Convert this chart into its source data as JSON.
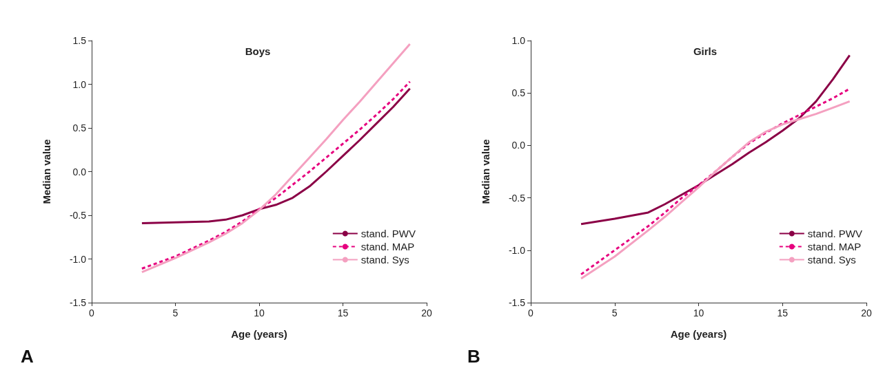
{
  "chart_data": [
    {
      "type": "line",
      "title": "Boys",
      "xlabel": "Age (years)",
      "ylabel": "Median value",
      "annotations": [
        "A"
      ],
      "xlim": [
        0,
        20
      ],
      "xticks": [
        0,
        5,
        10,
        15,
        20
      ],
      "ylim": [
        -1.5,
        1.5
      ],
      "yticks": [
        {
          "value": -1.5,
          "label": "-1.5"
        },
        {
          "value": -1,
          "label": "-1.0"
        },
        {
          "value": -0.5,
          "label": "-0.5"
        },
        {
          "value": 0,
          "label": "0.0"
        },
        {
          "value": 0.5,
          "label": "0.5"
        },
        {
          "value": 1,
          "label": "1.0"
        },
        {
          "value": 1.5,
          "label": "1.5"
        }
      ],
      "grid": false,
      "legend": "bottom right",
      "marker": "none",
      "x": [
        3,
        5,
        7,
        8,
        9,
        10,
        11,
        12,
        13,
        14,
        15,
        16,
        17,
        18,
        19
      ],
      "series": [
        {
          "name": "stand. PWV",
          "color": "#8b0046",
          "line_style": "solid",
          "values": [
            -0.59,
            -0.58,
            -0.57,
            -0.55,
            -0.5,
            -0.43,
            -0.38,
            -0.3,
            -0.17,
            0.0,
            0.18,
            0.36,
            0.55,
            0.74,
            0.95
          ]
        },
        {
          "name": "stand. MAP",
          "color": "#e6007e",
          "line_style": "dashed",
          "values": [
            -1.11,
            -0.97,
            -0.79,
            -0.69,
            -0.57,
            -0.43,
            -0.3,
            -0.15,
            0.0,
            0.16,
            0.32,
            0.48,
            0.65,
            0.83,
            1.03
          ]
        },
        {
          "name": "stand. Sys",
          "color": "#f4a0c0",
          "line_style": "solid",
          "values": [
            -1.15,
            -0.99,
            -0.81,
            -0.71,
            -0.59,
            -0.44,
            -0.26,
            -0.05,
            0.16,
            0.37,
            0.59,
            0.8,
            1.02,
            1.24,
            1.46
          ]
        }
      ]
    },
    {
      "type": "line",
      "title": "Girls",
      "xlabel": "Age (years)",
      "ylabel": "Median value",
      "annotations": [
        "B"
      ],
      "xlim": [
        0,
        20
      ],
      "xticks": [
        0,
        5,
        10,
        15,
        20
      ],
      "ylim": [
        -1.5,
        1.0
      ],
      "yticks": [
        {
          "value": -1.5,
          "label": "-1.5"
        },
        {
          "value": -1,
          "label": "-1.0"
        },
        {
          "value": -0.5,
          "label": "-0.5"
        },
        {
          "value": 0,
          "label": "0.0"
        },
        {
          "value": 0.5,
          "label": "0.5"
        },
        {
          "value": 1,
          "label": "1.0"
        }
      ],
      "grid": false,
      "legend": "bottom right",
      "marker": "none",
      "x": [
        3,
        5,
        7,
        8,
        9,
        10,
        11,
        12,
        13,
        14,
        15,
        16,
        17,
        18,
        19
      ],
      "series": [
        {
          "name": "stand. PWV",
          "color": "#8b0046",
          "line_style": "solid",
          "values": [
            -0.75,
            -0.7,
            -0.64,
            -0.56,
            -0.47,
            -0.38,
            -0.28,
            -0.18,
            -0.07,
            0.03,
            0.14,
            0.26,
            0.42,
            0.63,
            0.86
          ]
        },
        {
          "name": "stand. MAP",
          "color": "#e6007e",
          "line_style": "dashed",
          "values": [
            -1.23,
            -1.0,
            -0.77,
            -0.64,
            -0.5,
            -0.38,
            -0.25,
            -0.11,
            0.02,
            0.12,
            0.21,
            0.29,
            0.37,
            0.45,
            0.54
          ]
        },
        {
          "name": "stand. Sys",
          "color": "#f4a0c0",
          "line_style": "solid",
          "values": [
            -1.27,
            -1.06,
            -0.81,
            -0.68,
            -0.54,
            -0.4,
            -0.25,
            -0.11,
            0.03,
            0.13,
            0.2,
            0.25,
            0.3,
            0.36,
            0.42
          ]
        }
      ]
    }
  ]
}
